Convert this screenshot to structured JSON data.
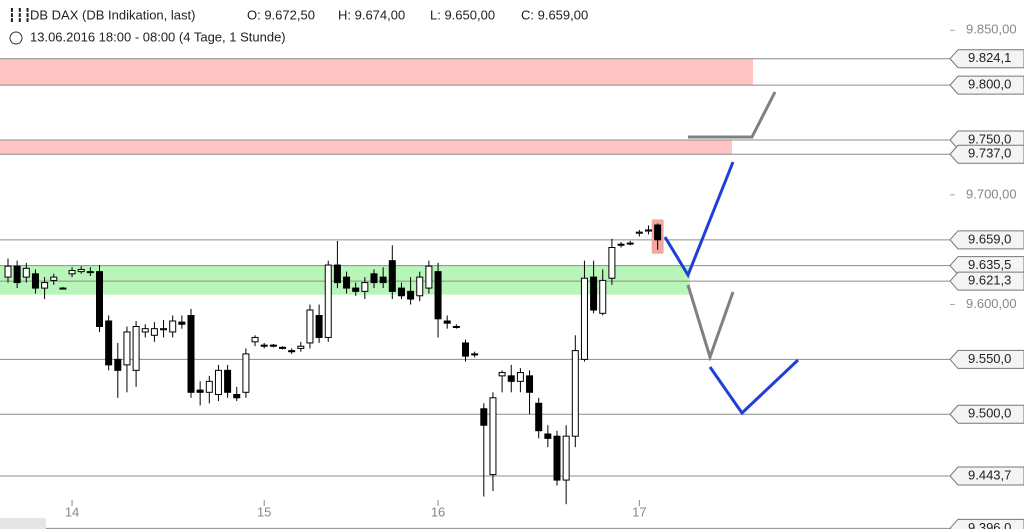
{
  "chart_data": {
    "type": "candlestick",
    "title": "DB DAX (DB Indikation, last)",
    "header_values": [
      "O: 9.672,50",
      "H: 9.674,00",
      "L: 9.650,00",
      "C: 9.659,00"
    ],
    "subtitle": "13.06.2016 18:00 - 08:00 (4 Tage, 1 Stunde)",
    "categories": [
      null,
      null,
      null,
      null,
      null,
      null,
      null,
      "14",
      null,
      null,
      null,
      null,
      null,
      null,
      null,
      null,
      null,
      null,
      null,
      null,
      null,
      null,
      null,
      null,
      null,
      null,
      null,
      null,
      "15",
      null,
      null,
      null,
      null,
      null,
      null,
      null,
      null,
      null,
      null,
      null,
      null,
      null,
      null,
      null,
      null,
      null,
      null,
      "16",
      null,
      null,
      null,
      null,
      null,
      null,
      null,
      null,
      null,
      null,
      null,
      null,
      null,
      null,
      null,
      null,
      null,
      null,
      null,
      null,
      null,
      "17",
      null,
      null
    ],
    "open": [
      9625,
      9635,
      9625,
      9628,
      9615,
      9622,
      9615,
      9628,
      9630,
      9630,
      9630,
      9585,
      9550,
      9545,
      9540,
      9575,
      9572,
      9577,
      9575,
      9584,
      9590,
      9522,
      9520,
      9518,
      9540,
      9518,
      9520,
      9566,
      9563,
      9563,
      9561,
      9558,
      9560,
      9565,
      9590,
      9570,
      9636,
      9625,
      9615,
      9612,
      9628,
      9625,
      9640,
      9615,
      9612,
      9608,
      9615,
      9630,
      9585,
      9580,
      9565,
      9555,
      9505,
      9445,
      9535,
      9535,
      9530,
      9535,
      9510,
      9482,
      9480,
      9440,
      9480,
      9550,
      9625,
      9592,
      9624,
      9655,
      9656,
      9665,
      9667,
      9672.5
    ],
    "high": [
      9642,
      9640,
      9638,
      9632,
      9625,
      9628,
      9616,
      9634,
      9635,
      9634,
      9636,
      9590,
      9565,
      9580,
      9585,
      9582,
      9584,
      9586,
      9590,
      9590,
      9596,
      9530,
      9535,
      9545,
      9545,
      9525,
      9560,
      9572,
      9565,
      9564,
      9562,
      9560,
      9566,
      9600,
      9600,
      9640,
      9658,
      9630,
      9620,
      9625,
      9632,
      9634,
      9654,
      9620,
      9625,
      9630,
      9640,
      9638,
      9590,
      9582,
      9568,
      9557,
      9510,
      9520,
      9540,
      9545,
      9542,
      9540,
      9515,
      9490,
      9485,
      9490,
      9572,
      9640,
      9640,
      9632,
      9660,
      9657,
      9658,
      9668,
      9672,
      9674
    ],
    "low": [
      9620,
      9615,
      9620,
      9610,
      9605,
      9618,
      9614,
      9625,
      9628,
      9626,
      9575,
      9540,
      9515,
      9520,
      9525,
      9570,
      9566,
      9570,
      9570,
      9578,
      9515,
      9508,
      9510,
      9512,
      9515,
      9512,
      9515,
      9562,
      9560,
      9561,
      9559,
      9555,
      9557,
      9560,
      9565,
      9566,
      9615,
      9610,
      9608,
      9605,
      9615,
      9615,
      9605,
      9605,
      9600,
      9603,
      9610,
      9570,
      9578,
      9578,
      9548,
      9552,
      9425,
      9430,
      9520,
      9520,
      9520,
      9500,
      9478,
      9470,
      9435,
      9418,
      9470,
      9548,
      9592,
      9590,
      9618,
      9652,
      9654,
      9662,
      9664,
      9650
    ],
    "close": [
      9635,
      9620,
      9633,
      9615,
      9620,
      9625,
      9615,
      9631,
      9632,
      9630,
      9580,
      9545,
      9540,
      9575,
      9580,
      9578,
      9578,
      9578,
      9585,
      9582,
      9520,
      9520,
      9530,
      9540,
      9520,
      9515,
      9555,
      9570,
      9562,
      9562,
      9560,
      9557,
      9562,
      9595,
      9570,
      9636,
      9620,
      9615,
      9612,
      9620,
      9620,
      9620,
      9612,
      9608,
      9605,
      9625,
      9635,
      9587,
      9583,
      9580,
      9553,
      9555,
      9490,
      9515,
      9538,
      9530,
      9538,
      9520,
      9485,
      9478,
      9440,
      9480,
      9558,
      9624,
      9595,
      9622,
      9652,
      9654,
      9656,
      9666,
      9668,
      9659
    ],
    "ylim": [
      9395.4,
      9877.6
    ],
    "yticks": [
      {
        "value": 9850,
        "label": "9.850,00"
      },
      {
        "value": 9700,
        "label": "9.700,00"
      },
      {
        "value": 9600,
        "label": "9.600,00"
      }
    ],
    "levels": [
      {
        "value": 9824.1,
        "label": "9.824,1"
      },
      {
        "value": 9800,
        "label": "9.800,0"
      },
      {
        "value": 9750,
        "label": "9.750,0"
      },
      {
        "value": 9737,
        "label": "9.737,0"
      },
      {
        "value": 9659,
        "label": "9.659,0"
      },
      {
        "value": 9635.5,
        "label": "9.635,5"
      },
      {
        "value": 9621.3,
        "label": "9.621,3"
      },
      {
        "value": 9550,
        "label": "9.550,0"
      },
      {
        "value": 9500,
        "label": "9.500,0"
      },
      {
        "value": 9443.7,
        "label": "9.443,7"
      },
      {
        "value": 9396,
        "label": "9.396,0"
      }
    ],
    "zones": [
      {
        "range": [
          9800,
          9824.1
        ],
        "color": "#ffc4c4"
      },
      {
        "range": [
          9737,
          9750
        ],
        "color": "#ffc4c4"
      },
      {
        "range": [
          9609,
          9635.5
        ],
        "color": "#b8f5b8"
      }
    ]
  }
}
